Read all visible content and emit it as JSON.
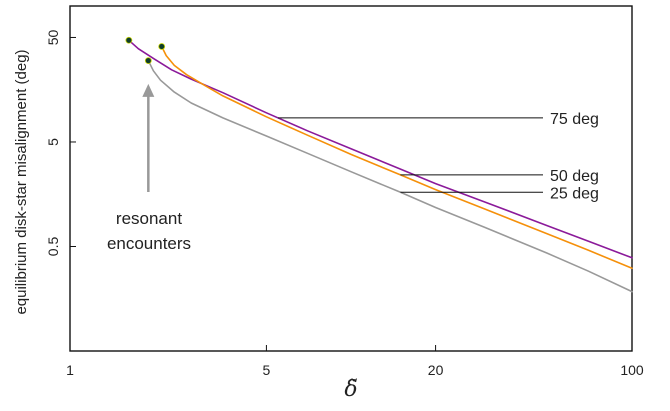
{
  "chart_data": {
    "type": "line",
    "title": "",
    "xlabel": "δ̃",
    "ylabel": "equilibrium disk-star misalignment (deg)",
    "xscale": "log",
    "yscale": "log",
    "xlim": [
      1,
      100
    ],
    "ylim": [
      0.05,
      100
    ],
    "xticks": [
      {
        "value": 1,
        "label": "1"
      },
      {
        "value": 5,
        "label": "5"
      },
      {
        "value": 20,
        "label": "20"
      },
      {
        "value": 100,
        "label": "100"
      }
    ],
    "yticks": [
      {
        "value": 0.5,
        "label": "0.5"
      },
      {
        "value": 5,
        "label": "5"
      },
      {
        "value": 50,
        "label": "50"
      }
    ],
    "grid": false,
    "legend": "direct line labels on right",
    "colors": {
      "75 deg": "#8b1a9a",
      "50 deg": "#f5900a",
      "25 deg": "#999999",
      "marker": "#0f3d2a"
    },
    "series": [
      {
        "name": "75 deg",
        "x": [
          1.62,
          1.75,
          2.0,
          2.3,
          2.7,
          3.5,
          5.0,
          7.0,
          10.0,
          15.0,
          20.0,
          30.0,
          50.0,
          70.0,
          100.0
        ],
        "y": [
          47,
          39,
          31,
          24.5,
          20,
          14.8,
          9.5,
          6.4,
          4.3,
          2.75,
          2.0,
          1.33,
          0.79,
          0.56,
          0.39
        ],
        "start_marker": true
      },
      {
        "name": "50 deg",
        "x": [
          2.12,
          2.2,
          2.35,
          2.6,
          3.0,
          3.5,
          5.0,
          7.0,
          10.0,
          15.0,
          20.0,
          30.0,
          50.0,
          70.0,
          100.0
        ],
        "y": [
          41,
          33.5,
          27,
          22,
          17.5,
          13.8,
          8.7,
          5.8,
          3.8,
          2.42,
          1.75,
          1.14,
          0.66,
          0.46,
          0.31
        ],
        "start_marker": true
      },
      {
        "name": "25 deg",
        "x": [
          1.9,
          1.98,
          2.1,
          2.35,
          2.7,
          3.5,
          5.0,
          7.0,
          10.0,
          15.0,
          20.0,
          30.0,
          50.0,
          70.0,
          100.0
        ],
        "y": [
          30,
          24,
          19.5,
          15,
          11.8,
          8.5,
          5.7,
          3.9,
          2.6,
          1.65,
          1.18,
          0.76,
          0.43,
          0.29,
          0.185
        ],
        "start_marker": true
      }
    ],
    "series_labels": [
      {
        "text": "75 deg",
        "series": "75 deg",
        "x": 5.5
      },
      {
        "text": "50 deg",
        "series": "50 deg",
        "x": 15.0
      },
      {
        "text": "25 deg",
        "series": "25 deg",
        "x": 15.0
      }
    ],
    "annotations": [
      {
        "text_lines": [
          "resonant",
          "encounters"
        ],
        "arrow_target": {
          "x": 1.9,
          "y": 18
        }
      }
    ]
  }
}
